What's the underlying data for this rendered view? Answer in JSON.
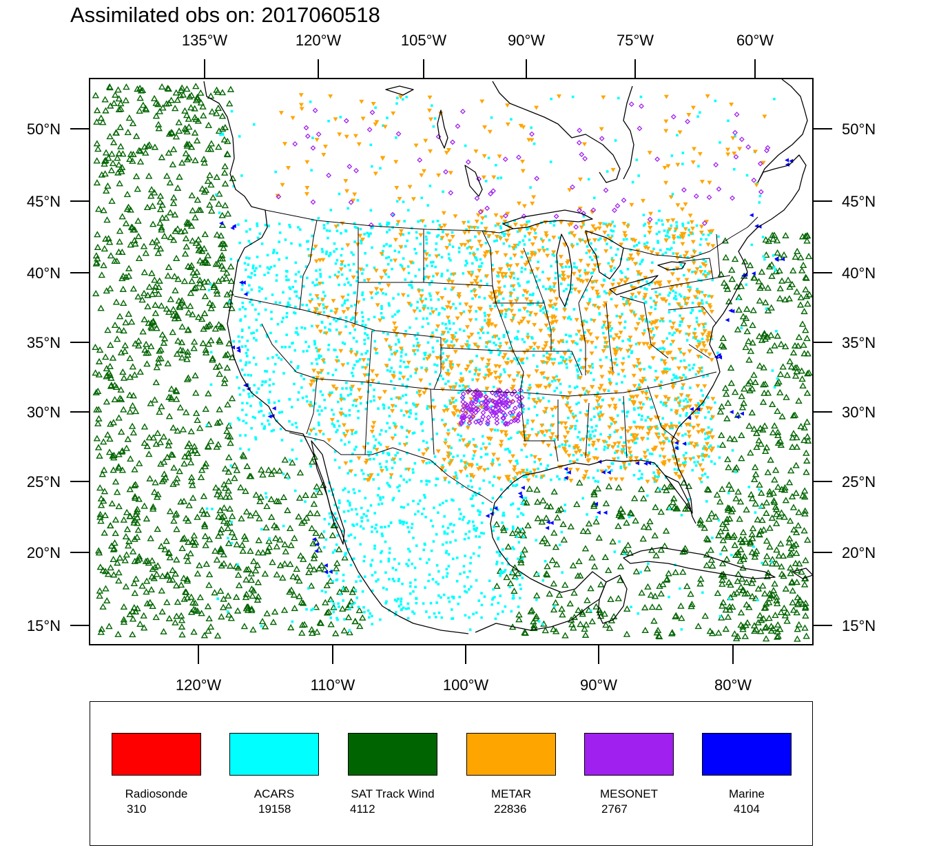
{
  "title": "Assimilated obs on: 2017060518",
  "axes": {
    "top_labels": [
      "135°W",
      "120°W",
      "105°W",
      "90°W",
      "75°W",
      "60°W"
    ],
    "bottom_labels": [
      "120°W",
      "110°W",
      "100°W",
      "90°W",
      "80°W"
    ],
    "left_labels": [
      "50°N",
      "45°N",
      "40°N",
      "35°N",
      "30°N",
      "25°N",
      "20°N",
      "15°N"
    ],
    "right_labels": [
      "50°N",
      "45°N",
      "40°N",
      "35°N",
      "30°N",
      "25°N",
      "20°N",
      "15°N"
    ]
  },
  "colors": {
    "radiosonde": "#ff0000",
    "acars": "#00ffff",
    "sat_track_wind": "#006400",
    "metar": "#ffa500",
    "mesonet": "#a020f0",
    "marine": "#0000ff",
    "coastline": "#000000"
  },
  "legend": [
    {
      "name": "Radiosonde",
      "count": "310",
      "color": "#ff0000"
    },
    {
      "name": "ACARS",
      "count": "19158",
      "color": "#00ffff"
    },
    {
      "name": "SAT Track Wind",
      "count": "4112",
      "color": "#006400"
    },
    {
      "name": "METAR",
      "count": "22836",
      "color": "#ffa500"
    },
    {
      "name": "MESONET",
      "count": "2767",
      "color": "#a020f0"
    },
    {
      "name": "Marine",
      "count": "4104",
      "color": "#0000ff"
    }
  ]
}
